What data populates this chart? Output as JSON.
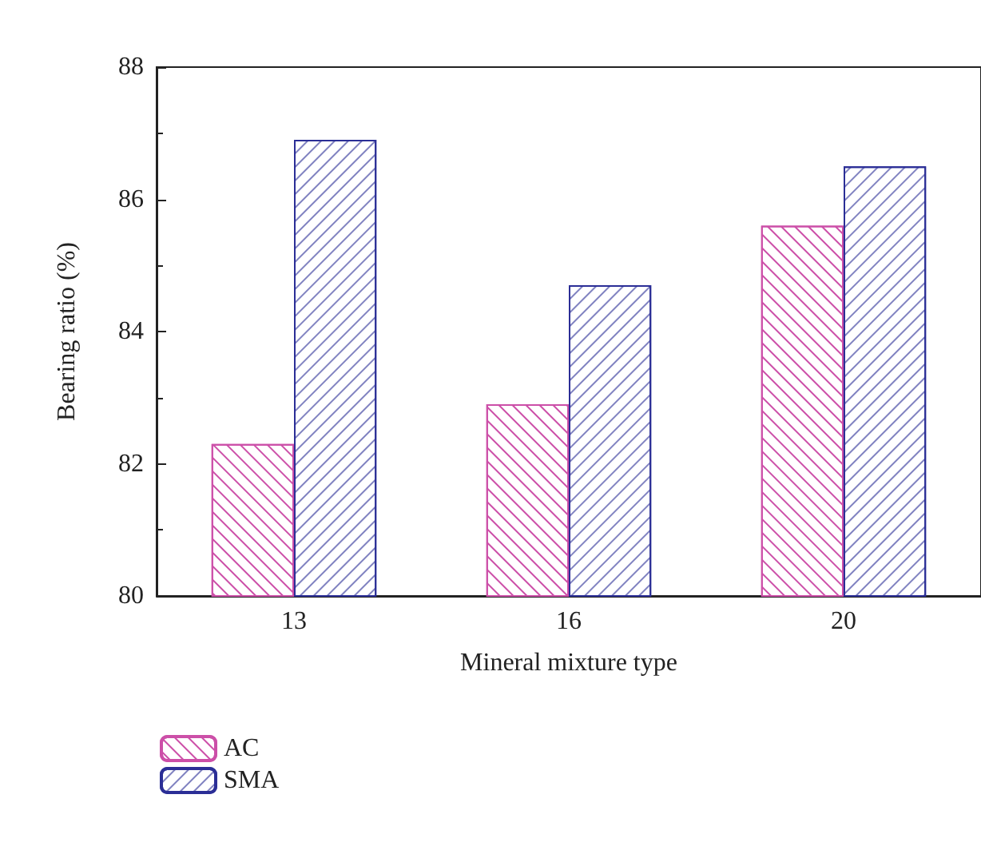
{
  "chart_data": {
    "type": "bar",
    "xlabel": "Mineral mixture type",
    "ylabel": "Bearing ratio (%)",
    "categories": [
      "13",
      "16",
      "20"
    ],
    "series": [
      {
        "name": "AC",
        "color": "#cc4fa8",
        "values": [
          82.3,
          82.9,
          85.6
        ]
      },
      {
        "name": "SMA",
        "color": "#2b2e96",
        "values": [
          86.9,
          84.7,
          86.5
        ]
      }
    ],
    "ylim": [
      80,
      88
    ],
    "yticks": [
      80,
      82,
      84,
      86,
      88
    ],
    "grid": false,
    "legend": "bottom left"
  }
}
